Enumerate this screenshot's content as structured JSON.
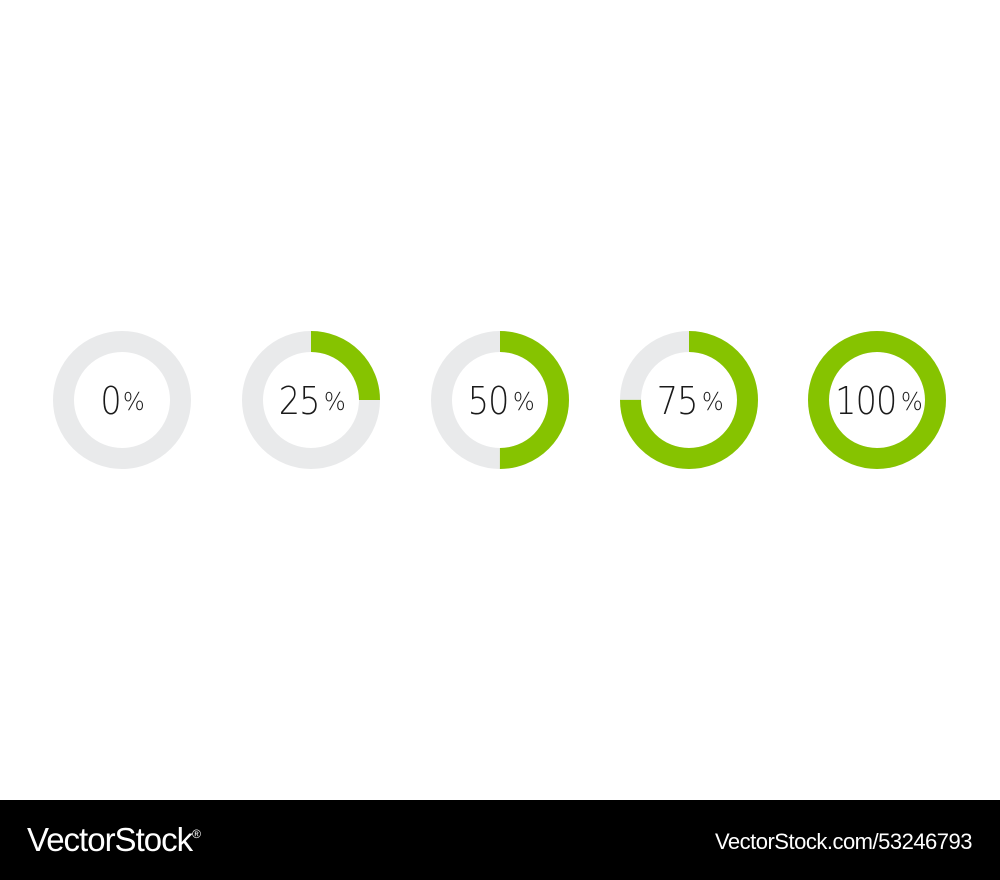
{
  "colors": {
    "track": "#e9eaeb",
    "fill": "#86c300",
    "label": "#1a1a1a",
    "footer_bg": "#000000",
    "footer_text": "#ffffff"
  },
  "gauges": [
    {
      "value": "0",
      "unit": "%",
      "fraction": 0
    },
    {
      "value": "25",
      "unit": "%",
      "fraction": 0.25
    },
    {
      "value": "50",
      "unit": "%",
      "fraction": 0.5
    },
    {
      "value": "75",
      "unit": "%",
      "fraction": 0.75
    },
    {
      "value": "100",
      "unit": "%",
      "fraction": 1
    }
  ],
  "footer": {
    "brand": "VectorStock",
    "brand_mark": "®",
    "image_id": "VectorStock.com/53246793"
  }
}
